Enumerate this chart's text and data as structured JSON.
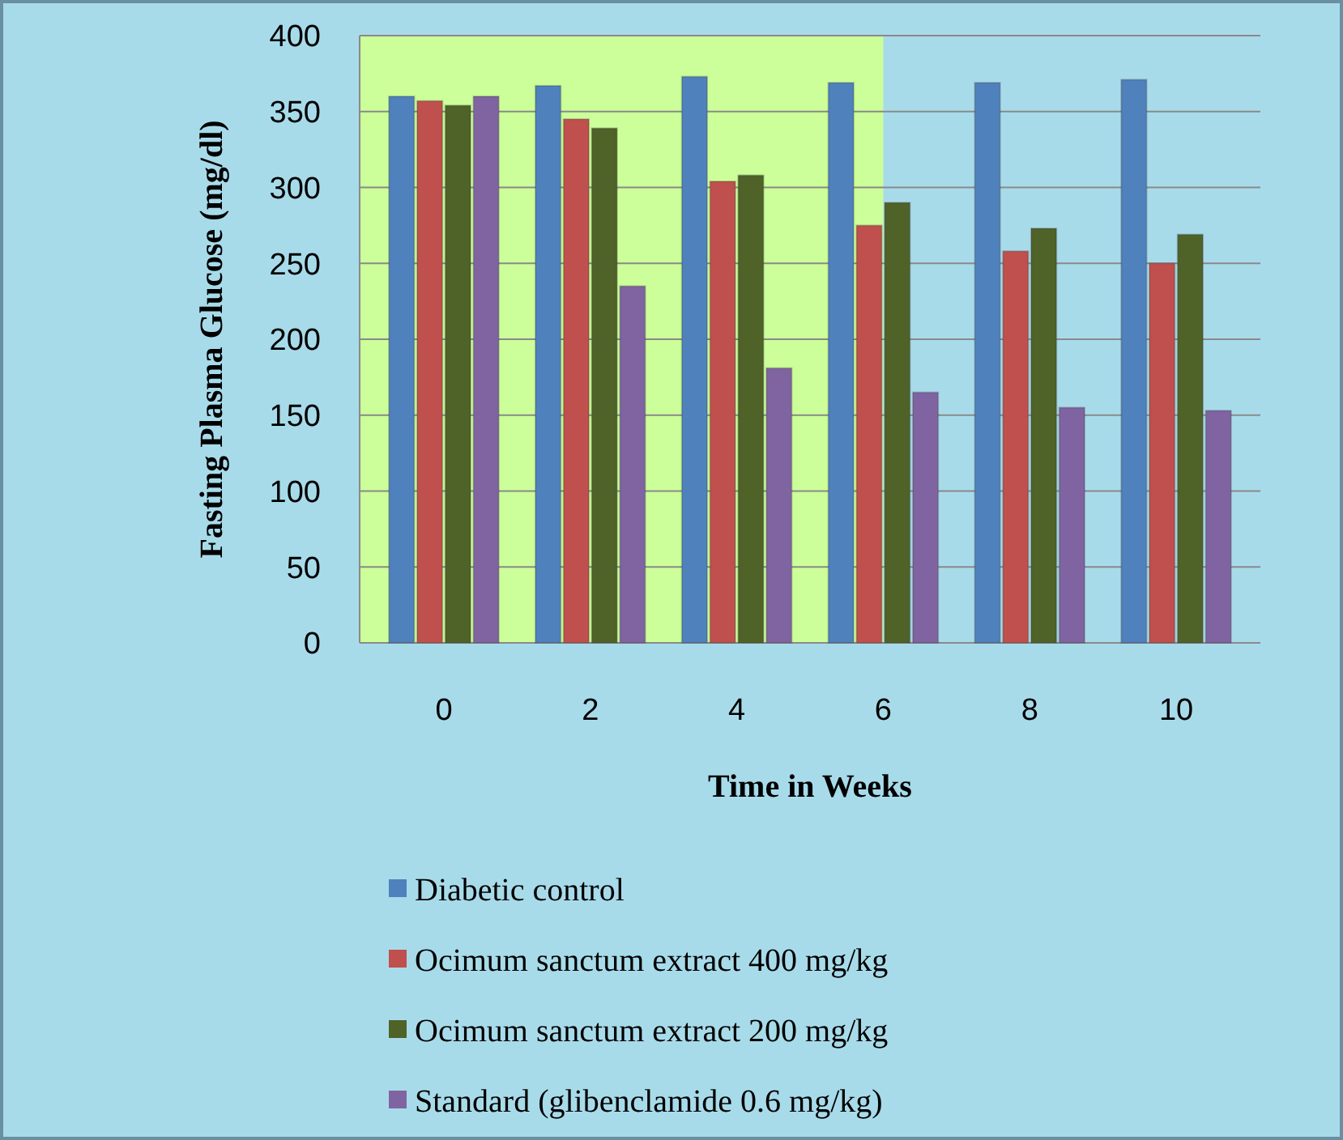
{
  "chart_data": {
    "type": "bar",
    "xlabel": "Time in Weeks",
    "ylabel": "Fasting Plasma Glucose (mg/dl)",
    "categories": [
      "0",
      "2",
      "4",
      "6",
      "8",
      "10"
    ],
    "series": [
      {
        "name": "Diabetic control",
        "color": "#4f81bd",
        "values": [
          360,
          367,
          373,
          369,
          369,
          371
        ]
      },
      {
        "name": "Ocimum sanctum extract 400 mg/kg",
        "color": "#c0504d",
        "values": [
          357,
          345,
          304,
          275,
          258,
          250
        ]
      },
      {
        "name": "Ocimum sanctum extract 200 mg/kg",
        "color": "#4f6228",
        "values": [
          354,
          339,
          308,
          290,
          273,
          269
        ]
      },
      {
        "name": "Standard (glibenclamide 0.6 mg/kg)",
        "color": "#8064a2",
        "values": [
          360,
          235,
          181,
          165,
          155,
          153
        ]
      }
    ],
    "ylim": [
      0,
      400
    ],
    "yticks": [
      0,
      50,
      100,
      150,
      200,
      250,
      300,
      350,
      400
    ],
    "grid": "y",
    "legend": "bottom",
    "bands": [
      {
        "axis": "x",
        "from": "0",
        "to": "6",
        "color": "#ccff99"
      }
    ]
  }
}
